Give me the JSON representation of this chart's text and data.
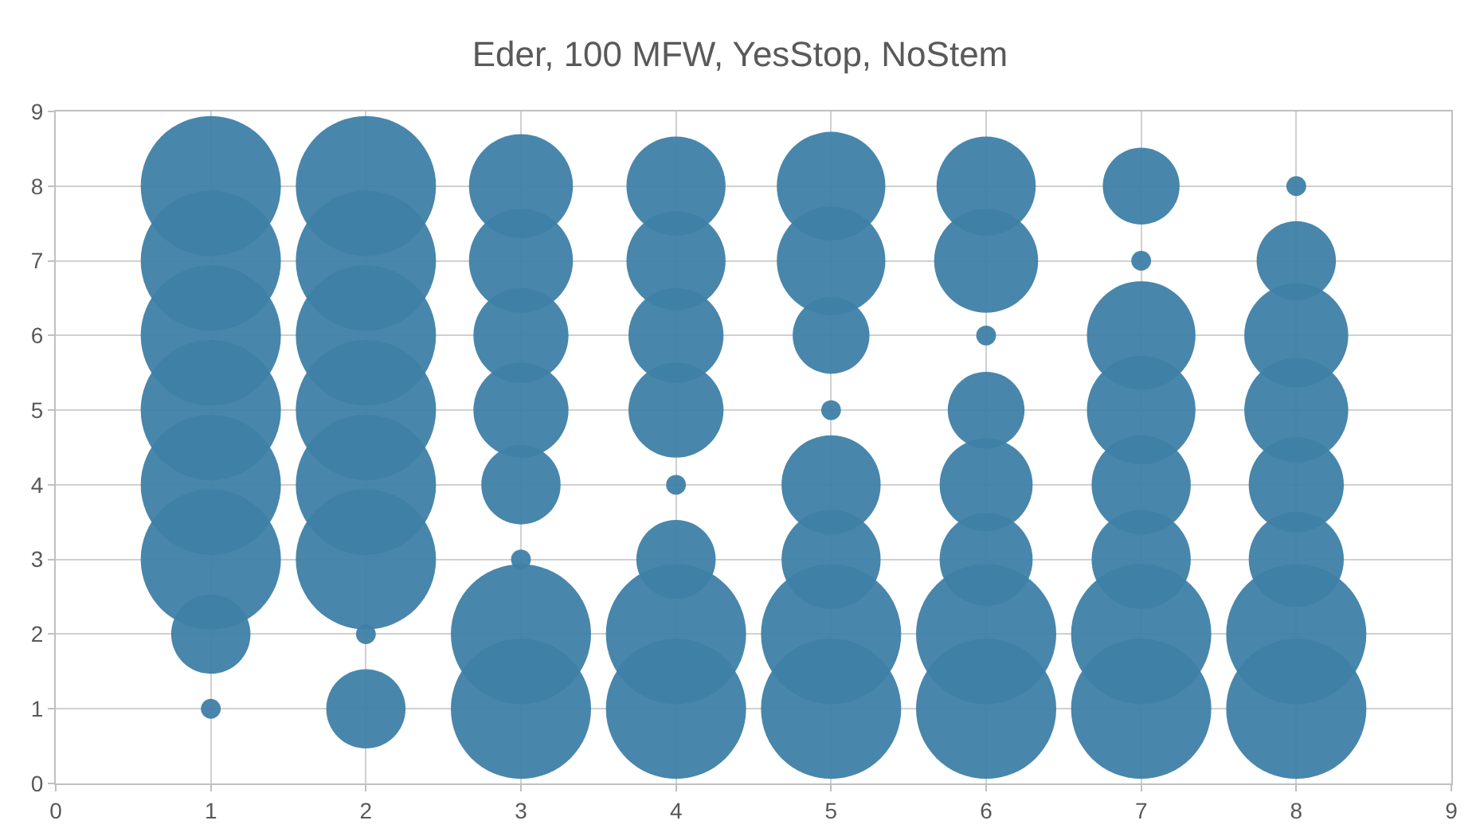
{
  "chart_data": {
    "type": "bubble",
    "title": "Eder, 100 MFW, YesStop, NoStem",
    "relative": false,
    "x": [
      1,
      1,
      1,
      1,
      1,
      1,
      1,
      1,
      2,
      2,
      2,
      2,
      2,
      2,
      2,
      2,
      3,
      3,
      3,
      3,
      3,
      3,
      3,
      3,
      4,
      4,
      4,
      4,
      4,
      4,
      4,
      4,
      5,
      5,
      5,
      5,
      5,
      5,
      5,
      5,
      6,
      6,
      6,
      6,
      6,
      6,
      6,
      6,
      7,
      7,
      7,
      7,
      7,
      7,
      7,
      7,
      8,
      8,
      8,
      8,
      8,
      8,
      8,
      8
    ],
    "values": [
      8,
      7,
      6,
      5,
      4,
      3,
      2,
      1,
      8,
      7,
      6,
      5,
      4,
      3,
      2,
      1,
      8,
      7,
      6,
      5,
      4,
      3,
      2,
      1,
      8,
      7,
      6,
      5,
      4,
      3,
      2,
      1,
      8,
      7,
      6,
      5,
      4,
      3,
      2,
      1,
      8,
      7,
      6,
      5,
      4,
      3,
      2,
      1,
      8,
      7,
      6,
      5,
      4,
      3,
      2,
      1,
      8,
      7,
      6,
      5,
      4,
      3,
      2,
      1
    ],
    "sizes": [
      1,
      1,
      1,
      1,
      1,
      1,
      0.32,
      0.02,
      1,
      1,
      1,
      1,
      1,
      1,
      0.02,
      0.32,
      0.55,
      0.55,
      0.46,
      0.46,
      0.32,
      0.02,
      1,
      1,
      0.5,
      0.5,
      0.46,
      0.46,
      0.02,
      0.32,
      1,
      1,
      0.6,
      0.6,
      0.3,
      0.02,
      0.5,
      0.5,
      1,
      1,
      0.5,
      0.55,
      0.02,
      0.3,
      0.44,
      0.44,
      1,
      1,
      0.3,
      0.02,
      0.6,
      0.6,
      0.5,
      0.5,
      1,
      1,
      0.02,
      0.32,
      0.55,
      0.55,
      0.46,
      0.46,
      1,
      1
    ],
    "color": "#3f7fa6",
    "xlim": [
      0,
      9
    ],
    "xticks": [
      0,
      1,
      2,
      3,
      4,
      5,
      6,
      7,
      8,
      9
    ],
    "ylim": [
      0,
      9
    ],
    "yticks": [
      0,
      1,
      2,
      3,
      4,
      5,
      6,
      7,
      8,
      9
    ],
    "grid": true,
    "legend": false
  }
}
